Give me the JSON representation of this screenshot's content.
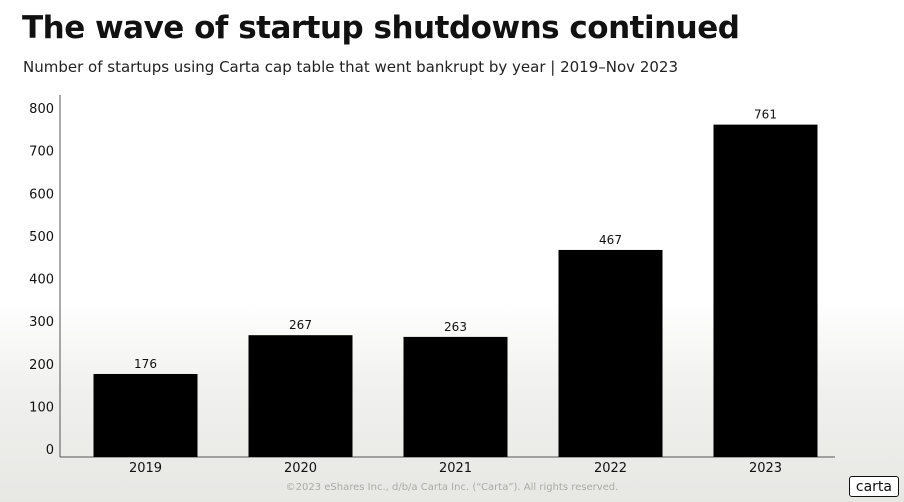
{
  "header": {
    "title": "The wave of startup shutdowns continued",
    "subtitle": "Number of startups using Carta cap table that went bankrupt by year | 2019–Nov 2023"
  },
  "footer": {
    "copyright": "©2023 eShares Inc., d/b/a Carta Inc. (“Carta”). All rights reserved.",
    "logo_text": "carta"
  },
  "colors": {
    "bar": "#000000",
    "axis": "#555555",
    "text": "#111111"
  },
  "chart_data": {
    "type": "bar",
    "title": "The wave of startup shutdowns continued",
    "subtitle": "Number of startups using Carta cap table that went bankrupt by year | 2019–Nov 2023",
    "categories": [
      "2019",
      "2020",
      "2021",
      "2022",
      "2023"
    ],
    "values": [
      176,
      267,
      263,
      467,
      761
    ],
    "data_labels": [
      "176",
      "267",
      "263",
      "467",
      "761"
    ],
    "xlabel": "",
    "ylabel": "",
    "ylim": [
      0,
      800
    ],
    "yticks": [
      0,
      100,
      200,
      300,
      400,
      500,
      600,
      700,
      800
    ],
    "grid": false,
    "legend": "none"
  }
}
